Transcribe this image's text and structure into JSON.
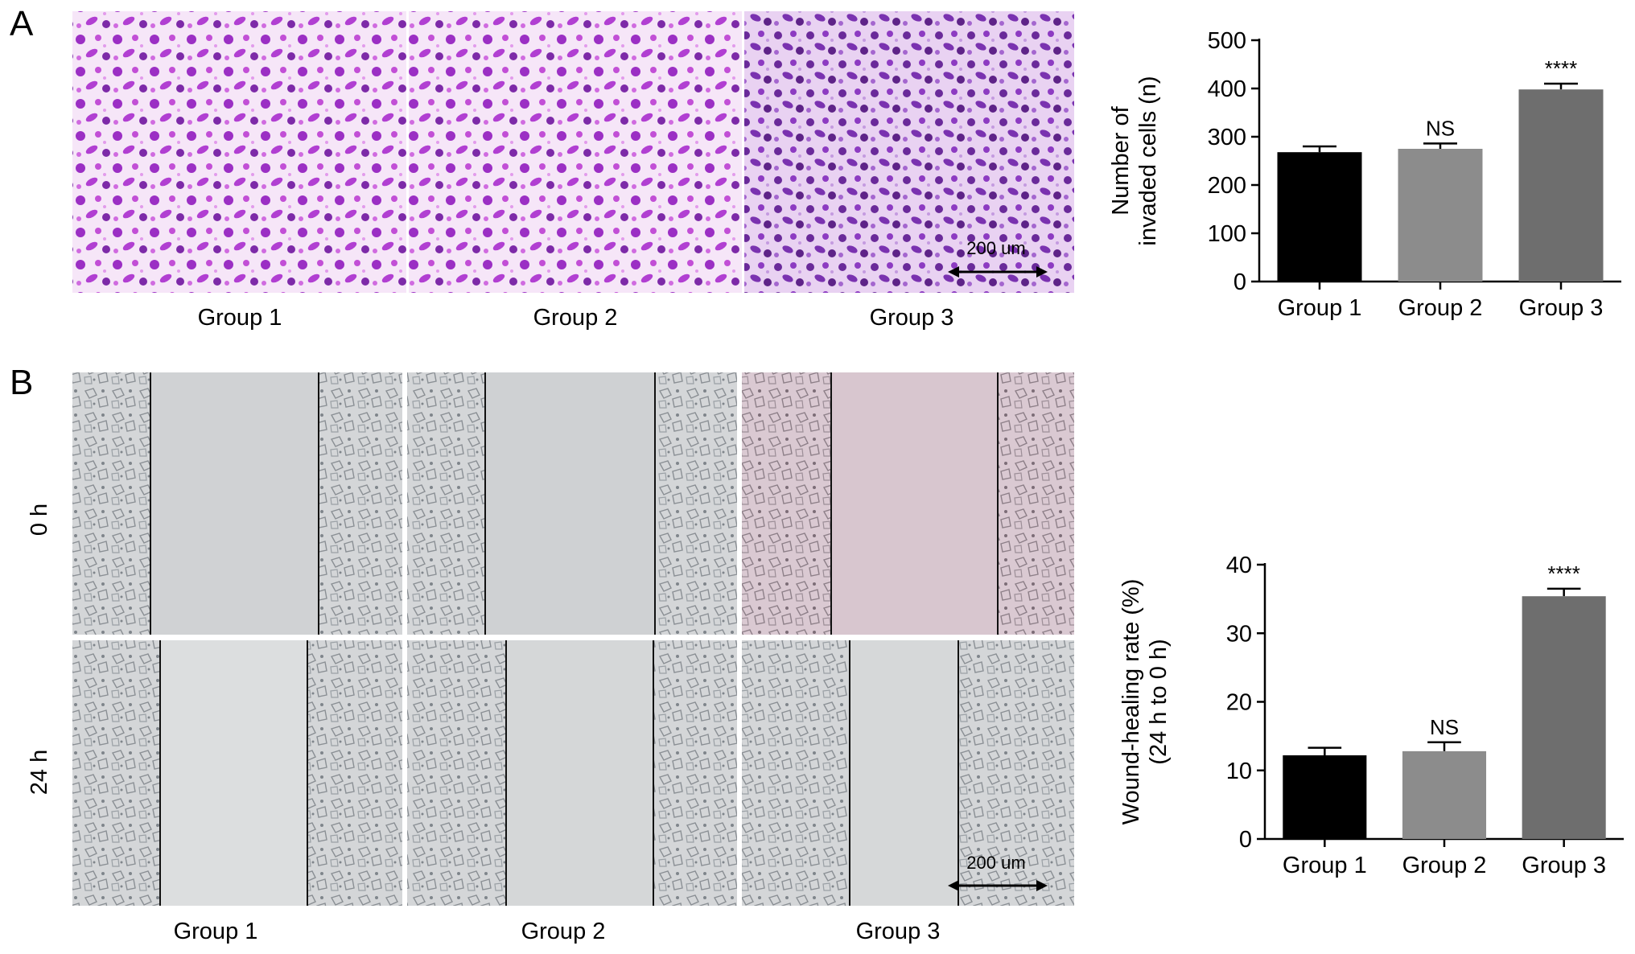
{
  "panels": {
    "A": {
      "label": "A",
      "images": [
        {
          "label": "Group 1"
        },
        {
          "label": "Group 2"
        },
        {
          "label": "Group 3"
        }
      ],
      "scale_bar": "200 um",
      "stain_color": "#a43fd0"
    },
    "B": {
      "label": "B",
      "row_labels": [
        "0 h",
        "24 h"
      ],
      "image_labels": [
        "Group 1",
        "Group 2",
        "Group 3"
      ],
      "scale_bar": "200 um"
    }
  },
  "chart_data": [
    {
      "type": "bar",
      "categories": [
        "Group 1",
        "Group 2",
        "Group 3"
      ],
      "values": [
        268,
        275,
        398
      ],
      "errors": [
        12,
        11,
        12
      ],
      "annotations": [
        "",
        "NS",
        "****"
      ],
      "ylabel_lines": [
        "Number of",
        "invaded cells (n)"
      ],
      "ylim": [
        0,
        500
      ],
      "yticks": [
        0,
        100,
        200,
        300,
        400,
        500
      ],
      "colors": [
        "#000000",
        "#8c8c8c",
        "#6e6e6e"
      ]
    },
    {
      "type": "bar",
      "categories": [
        "Group 1",
        "Group 2",
        "Group 3"
      ],
      "values": [
        12.2,
        12.8,
        35.4
      ],
      "errors": [
        1.1,
        1.3,
        1.1
      ],
      "annotations": [
        "",
        "NS",
        "****"
      ],
      "ylabel_lines": [
        "Wound-healing rate (%)",
        "(24 h to 0 h)"
      ],
      "ylim": [
        0,
        40
      ],
      "yticks": [
        0,
        10,
        20,
        30,
        40
      ],
      "colors": [
        "#000000",
        "#8c8c8c",
        "#6e6e6e"
      ]
    }
  ]
}
